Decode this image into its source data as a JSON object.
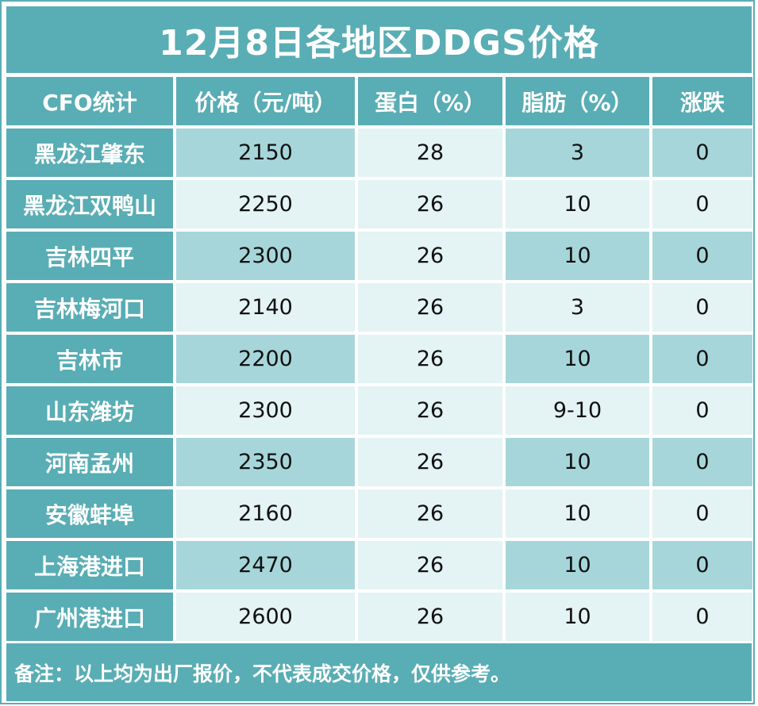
{
  "title": "12月8日各地区DDGS价格",
  "headers": [
    "CFO统计",
    "价格（元/吨）",
    "蛋白（%）",
    "脂肪（%）",
    "涨跌"
  ],
  "rows": [
    {
      "region": "黑龙江肇东",
      "price": "2150",
      "protein": "28",
      "fat": "3",
      "change": "0"
    },
    {
      "region": "黑龙江双鸭山",
      "price": "2250",
      "protein": "26",
      "fat": "10",
      "change": "0"
    },
    {
      "region": "吉林四平",
      "price": "2300",
      "protein": "26",
      "fat": "10",
      "change": "0"
    },
    {
      "region": "吉林梅河口",
      "price": "2140",
      "protein": "26",
      "fat": "3",
      "change": "0"
    },
    {
      "region": "吉林市",
      "price": "2200",
      "protein": "26",
      "fat": "10",
      "change": "0"
    },
    {
      "region": "山东潍坊",
      "price": "2300",
      "protein": "26",
      "fat": "9-10",
      "change": "0"
    },
    {
      "region": "河南孟州",
      "price": "2350",
      "protein": "26",
      "fat": "10",
      "change": "0"
    },
    {
      "region": "安徽蚌埠",
      "price": "2160",
      "protein": "26",
      "fat": "10",
      "change": "0"
    },
    {
      "region": "上海港进口",
      "price": "2470",
      "protein": "26",
      "fat": "10",
      "change": "0"
    },
    {
      "region": "广州港进口",
      "price": "2600",
      "protein": "26",
      "fat": "10",
      "change": "0"
    }
  ],
  "note": "备注：以上均为出厂报价，不代表成交价格，仅供参考。",
  "colors": {
    "header": "#59adb4",
    "cell_dark": "#a6d6da",
    "cell_light": "#e4f3f3"
  }
}
